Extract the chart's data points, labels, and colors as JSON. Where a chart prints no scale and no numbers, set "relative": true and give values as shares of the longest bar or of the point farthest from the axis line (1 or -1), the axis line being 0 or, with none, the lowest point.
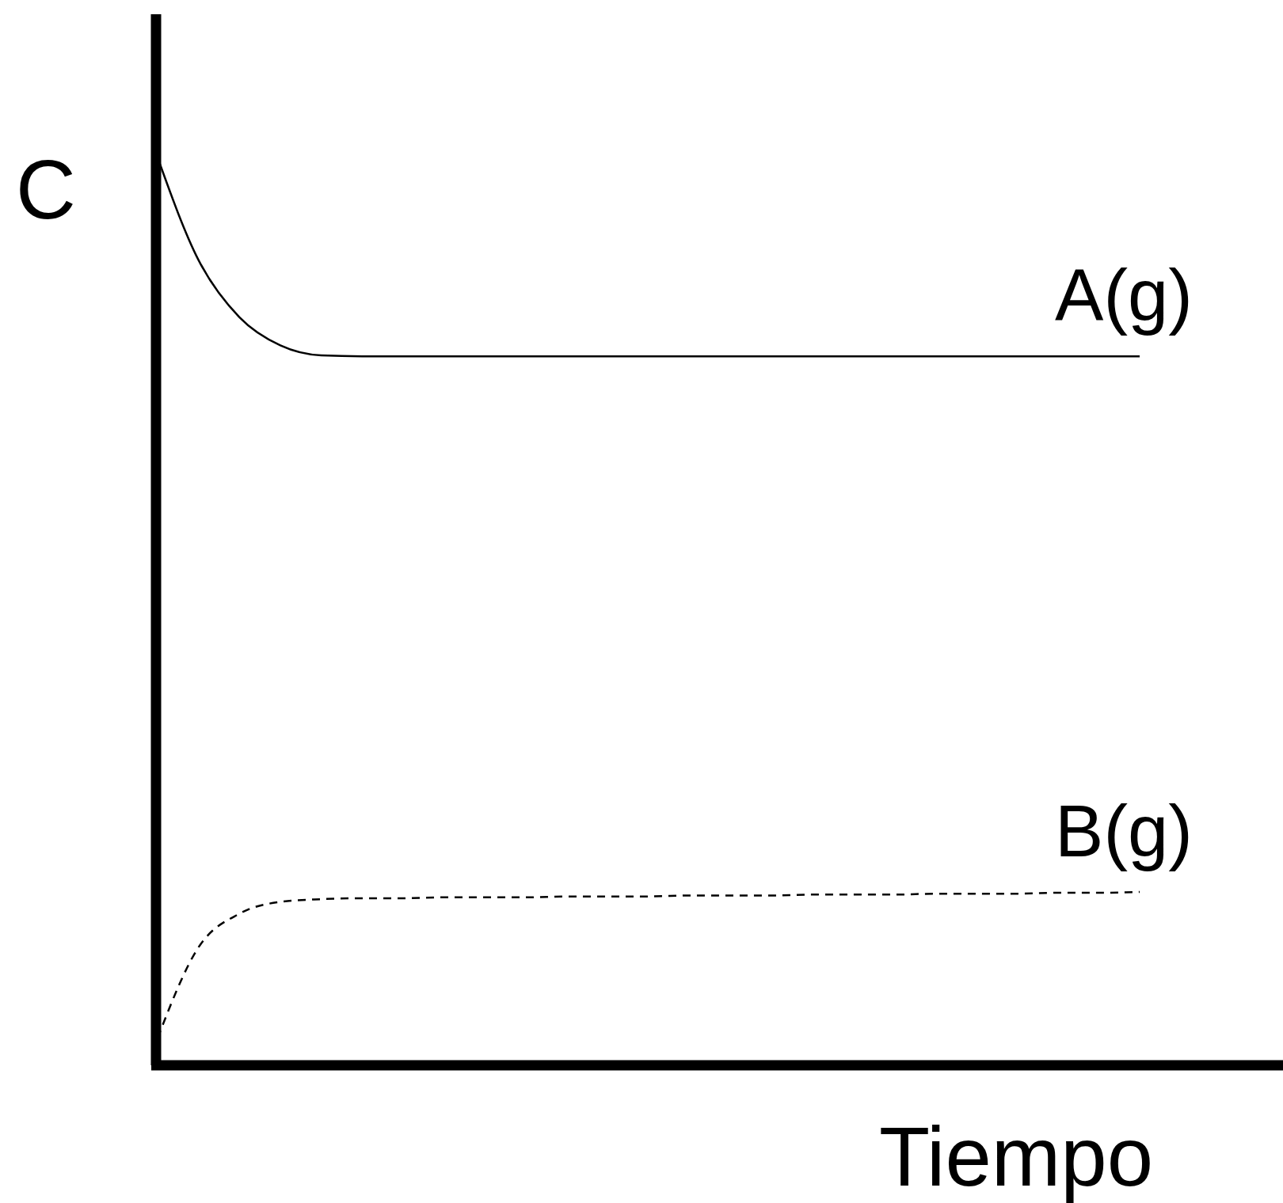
{
  "chart_data": {
    "type": "line",
    "relative": true,
    "xlabel": "Tiempo",
    "ylabel": "C",
    "categories": [
      null,
      null,
      null,
      null,
      null,
      null,
      null,
      null,
      null,
      null,
      null,
      null,
      null,
      null,
      null,
      null,
      null,
      null,
      null,
      null,
      null,
      null,
      null,
      null,
      null
    ],
    "series": [
      {
        "name": "A(g)",
        "color": "#000000",
        "line_style": "solid",
        "values": [
          1,
          0.887,
          0.824,
          0.793,
          0.782,
          0.781,
          0.781,
          0.781,
          0.781,
          0.781,
          0.781,
          0.781,
          0.781,
          0.781,
          0.781,
          0.781,
          0.781,
          0.781,
          0.781,
          0.781,
          0.781,
          0.781,
          0.781,
          0.781,
          0.781
        ]
      },
      {
        "name": "B(g)",
        "color": "#000000",
        "line_style": "dashed",
        "values": [
          0.03,
          0.13,
          0.167,
          0.18,
          0.183,
          0.184,
          0.184,
          0.185,
          0.185,
          0.185,
          0.186,
          0.186,
          0.186,
          0.187,
          0.187,
          0.187,
          0.188,
          0.188,
          0.188,
          0.189,
          0.189,
          0.189,
          0.19,
          0.19,
          0.191
        ]
      }
    ]
  }
}
